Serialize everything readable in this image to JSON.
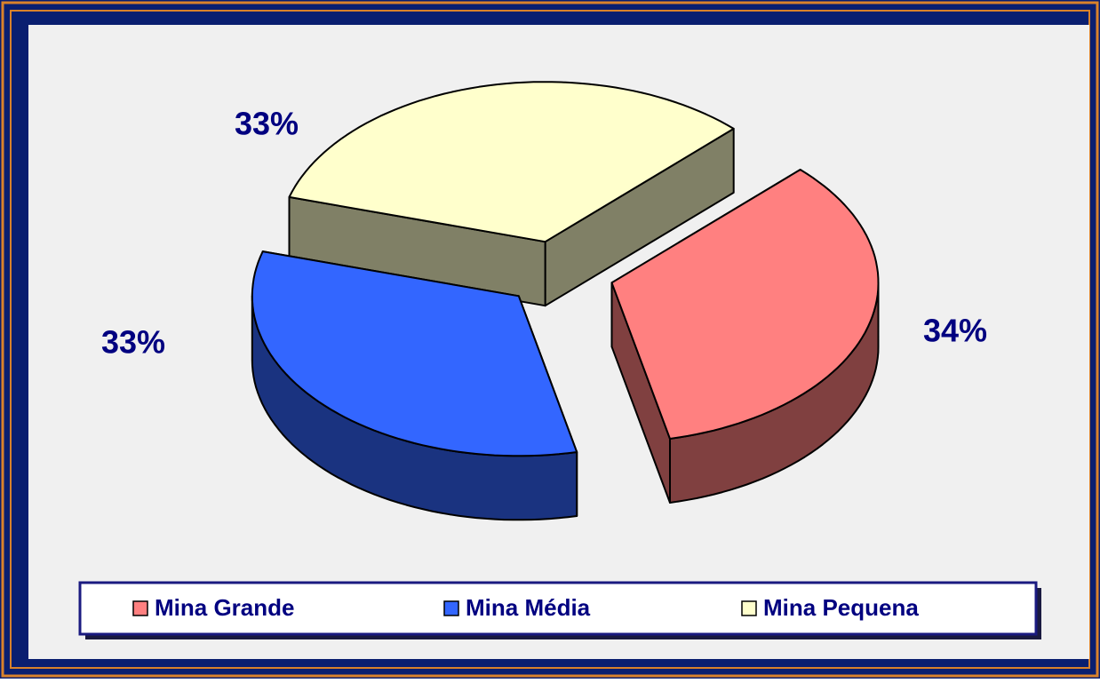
{
  "chart_data": {
    "type": "pie",
    "categories": [
      "Mina Grande",
      "Mina Média",
      "Mina Pequena"
    ],
    "values": [
      34,
      33,
      33
    ],
    "value_labels": [
      "34%",
      "33%",
      "33%"
    ],
    "colors": [
      "#ff8080",
      "#3366ff",
      "#ffffcc"
    ],
    "legend": "bottom"
  }
}
